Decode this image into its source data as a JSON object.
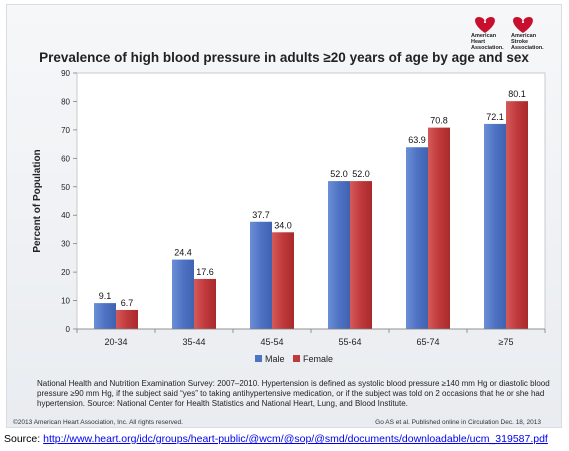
{
  "logo": {
    "org1": "American\nHeart\nAssociation.",
    "org2": "American\nStroke\nAssociation."
  },
  "chart_data": {
    "type": "bar",
    "title": "Prevalence of high blood pressure in adults ≥20 years of age by age and sex",
    "xlabel": "",
    "ylabel": "Percent of Population",
    "categories": [
      "20-34",
      "35-44",
      "45-54",
      "55-64",
      "65-74",
      "≥75"
    ],
    "series": [
      {
        "name": "Male",
        "color": "#4f73c3",
        "values": [
          9.1,
          24.4,
          37.7,
          52.0,
          63.9,
          72.1
        ],
        "labels": [
          "9.1",
          "24.4",
          "37.7",
          "52.0",
          "63.9",
          "72.1"
        ]
      },
      {
        "name": "Female",
        "color": "#c0393b",
        "values": [
          6.7,
          17.6,
          34.0,
          52.0,
          70.8,
          80.1
        ],
        "labels": [
          "6.7",
          "17.6",
          "34.0",
          "52.0",
          "70.8",
          "80.1"
        ]
      }
    ],
    "ylim": [
      0,
      90
    ],
    "yticks": [
      0,
      10,
      20,
      30,
      40,
      50,
      60,
      70,
      80,
      90
    ],
    "grid": false,
    "legend": "bottom"
  },
  "note": "National Health and Nutrition Examination Survey: 2007–2010. Hypertension is defined as systolic blood pressure ≥140 mm Hg or diastolic blood pressure ≥90 mm Hg, if the subject said “yes” to taking antihypertensive medication, or if the subject was told on 2 occasions that he or she had hypertension. Source: National Center for Health Statistics and National Heart, Lung, and Blood Institute.",
  "copyright": "©2013 American Heart Association, Inc. All rights reserved.",
  "citation": "Go AS et al. Published online in Circulation Dec. 18, 2013",
  "source_label": "Source: ",
  "source_url": "http://www.heart.org/idc/groups/heart-public/@wcm/@sop/@smd/documents/downloadable/ucm_319587.pdf"
}
